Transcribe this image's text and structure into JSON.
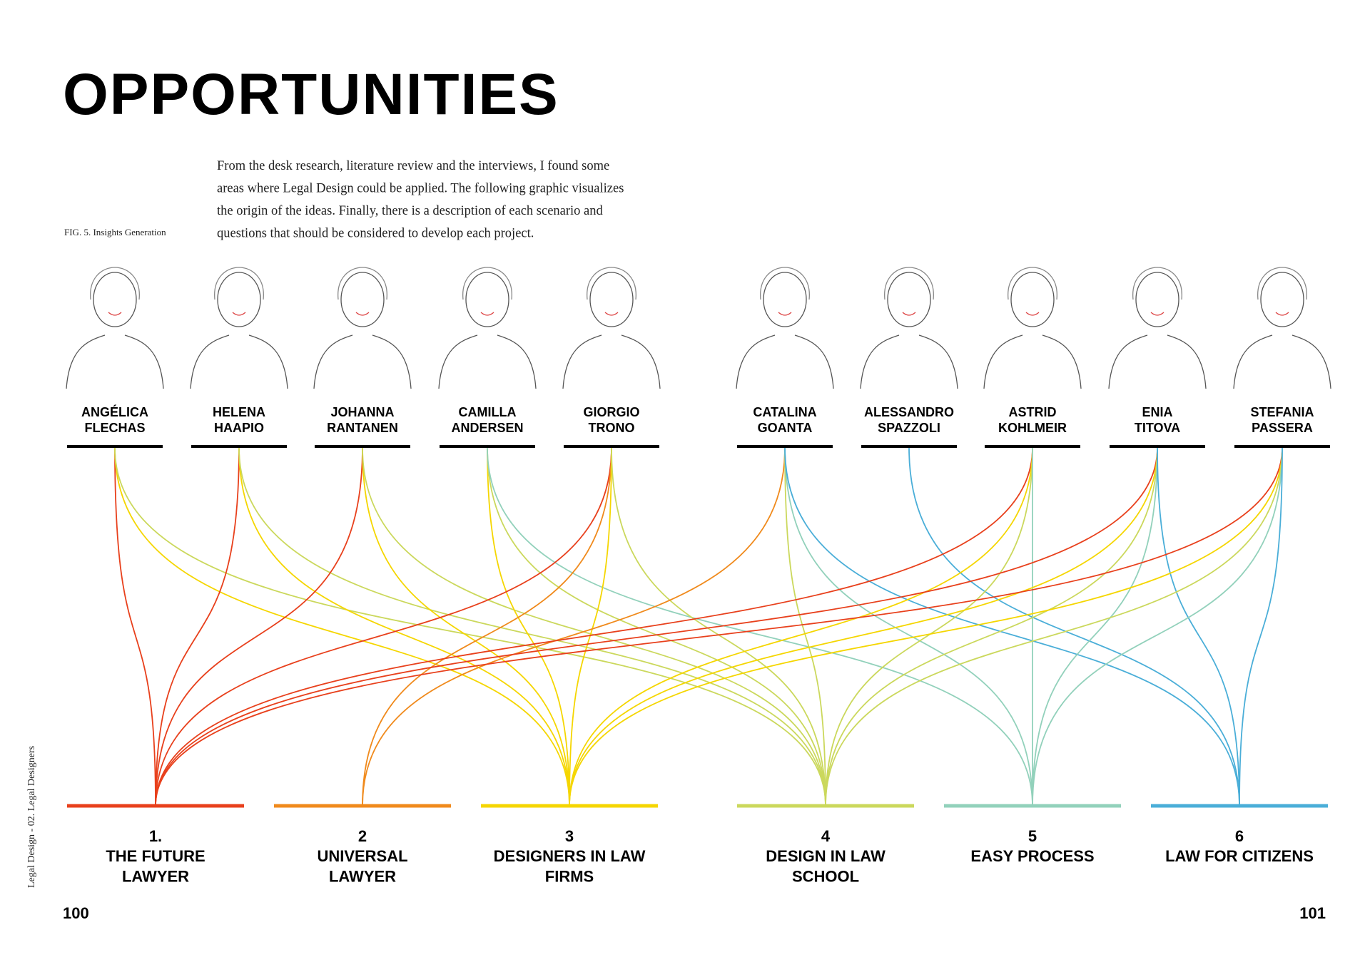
{
  "header": {
    "title": "OPPORTUNITIES"
  },
  "intro": {
    "caption": "FIG. 5. Insights Generation",
    "lines": [
      "From the desk research, literature review and the interviews, I found some",
      "areas where Legal Design could be applied. The following graphic visualizes",
      "the origin of the ideas. Finally, there is a description of each scenario and",
      "questions that should be considered to develop each project."
    ]
  },
  "people": [
    {
      "first": "ANGÉLICA",
      "last": "FLECHAS"
    },
    {
      "first": "HELENA",
      "last": "HAAPIO"
    },
    {
      "first": "JOHANNA",
      "last": "RANTANEN"
    },
    {
      "first": "CAMILLA",
      "last": "ANDERSEN"
    },
    {
      "first": "GIORGIO",
      "last": "TRONO"
    },
    {
      "first": "CATALINA",
      "last": "GOANTA"
    },
    {
      "first": "ALESSANDRO",
      "last": "SPAZZOLI"
    },
    {
      "first": "ASTRID",
      "last": "KOHLMEIR"
    },
    {
      "first": "ENIA",
      "last": "TITOVA"
    },
    {
      "first": "STEFANIA",
      "last": "PASSERA"
    }
  ],
  "opportunities": [
    {
      "number": "1.",
      "lines": [
        "THE FUTURE",
        "LAWYER"
      ],
      "color": "#e8401c"
    },
    {
      "number": "2",
      "lines": [
        "UNIVERSAL",
        "LAWYER"
      ],
      "color": "#f08a1c"
    },
    {
      "number": "3",
      "lines": [
        "DESIGNERS IN LAW",
        "FIRMS"
      ],
      "color": "#f5d600"
    },
    {
      "number": "4",
      "lines": [
        "DESIGN IN LAW",
        "SCHOOL"
      ],
      "color": "#cbd85c"
    },
    {
      "number": "5",
      "lines": [
        "EASY PROCESS"
      ],
      "color": "#92d1bb"
    },
    {
      "number": "6",
      "lines": [
        "LAW FOR CITIZENS"
      ],
      "color": "#4aaed8"
    }
  ],
  "edges": [
    [
      0,
      0
    ],
    [
      0,
      2
    ],
    [
      0,
      3
    ],
    [
      1,
      0
    ],
    [
      1,
      2
    ],
    [
      1,
      3
    ],
    [
      2,
      0
    ],
    [
      2,
      2
    ],
    [
      2,
      3
    ],
    [
      3,
      2
    ],
    [
      3,
      3
    ],
    [
      3,
      4
    ],
    [
      4,
      0
    ],
    [
      4,
      1
    ],
    [
      4,
      2
    ],
    [
      4,
      3
    ],
    [
      5,
      1
    ],
    [
      5,
      3
    ],
    [
      5,
      4
    ],
    [
      5,
      5
    ],
    [
      6,
      5
    ],
    [
      7,
      0
    ],
    [
      7,
      2
    ],
    [
      7,
      3
    ],
    [
      7,
      4
    ],
    [
      8,
      0
    ],
    [
      8,
      2
    ],
    [
      8,
      3
    ],
    [
      8,
      4
    ],
    [
      8,
      5
    ],
    [
      9,
      0
    ],
    [
      9,
      2
    ],
    [
      9,
      3
    ],
    [
      9,
      4
    ],
    [
      9,
      5
    ]
  ],
  "footer": {
    "side": "Legal Design - 02. Legal Designers",
    "left_page": "100",
    "right_page": "101"
  }
}
